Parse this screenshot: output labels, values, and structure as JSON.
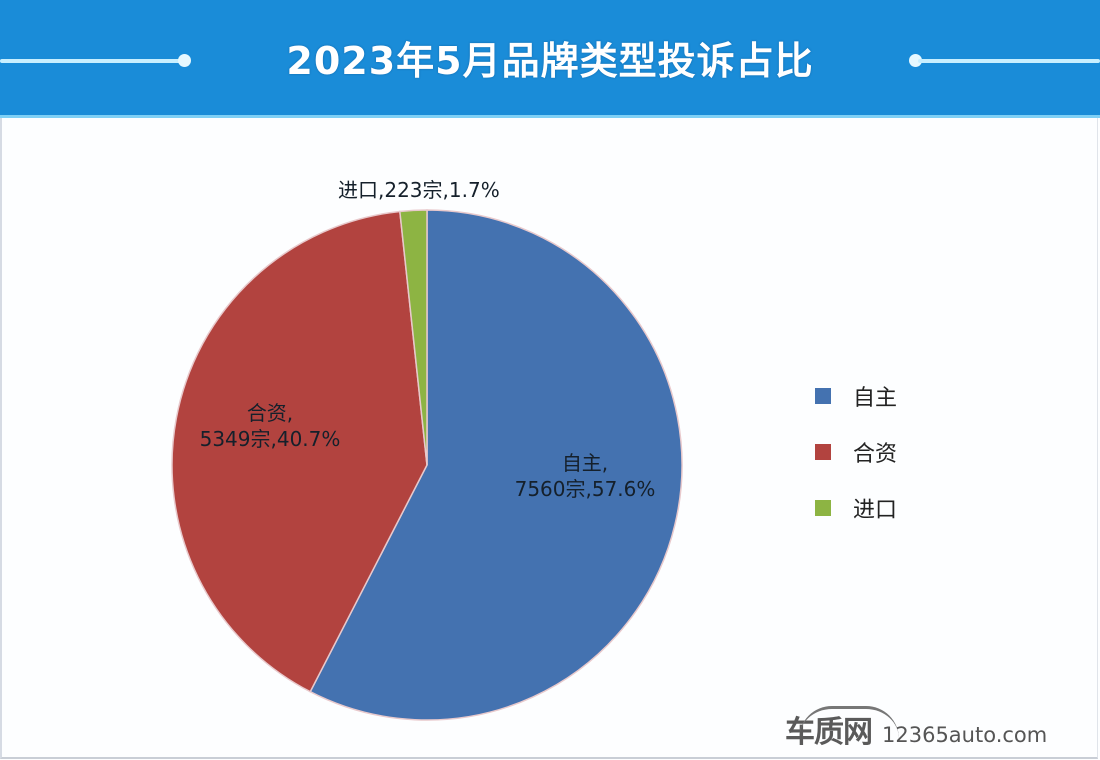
{
  "header": {
    "title": "2023年5月品牌类型投诉占比"
  },
  "chart_data": {
    "type": "pie",
    "title": "2023年5月品牌类型投诉占比",
    "unit": "宗",
    "categories": [
      "自主",
      "合资",
      "进口"
    ],
    "values": [
      7560,
      5349,
      223
    ],
    "percentages": [
      57.6,
      40.7,
      1.7
    ],
    "colors": [
      "#4472b0",
      "#b2433f",
      "#8db443"
    ],
    "start_angle": "12 o'clock, clockwise",
    "data_labels": [
      "自主,\n7560宗,57.6%",
      "合资,\n5349宗,40.7%",
      "进口,223宗,1.7%"
    ],
    "legend_position": "right"
  },
  "labels": {
    "zizhu_line1": "自主,",
    "zizhu_line2": "7560宗,57.6%",
    "hezi_line1": "合资,",
    "hezi_line2": "5349宗,40.7%",
    "jinkou": "进口,223宗,1.7%"
  },
  "legend": {
    "items": [
      {
        "label": "自主",
        "color": "#4472b0"
      },
      {
        "label": "合资",
        "color": "#b2433f"
      },
      {
        "label": "进口",
        "color": "#8db443"
      }
    ]
  },
  "watermark": {
    "brand": "车质网",
    "url": "12365auto.com"
  }
}
